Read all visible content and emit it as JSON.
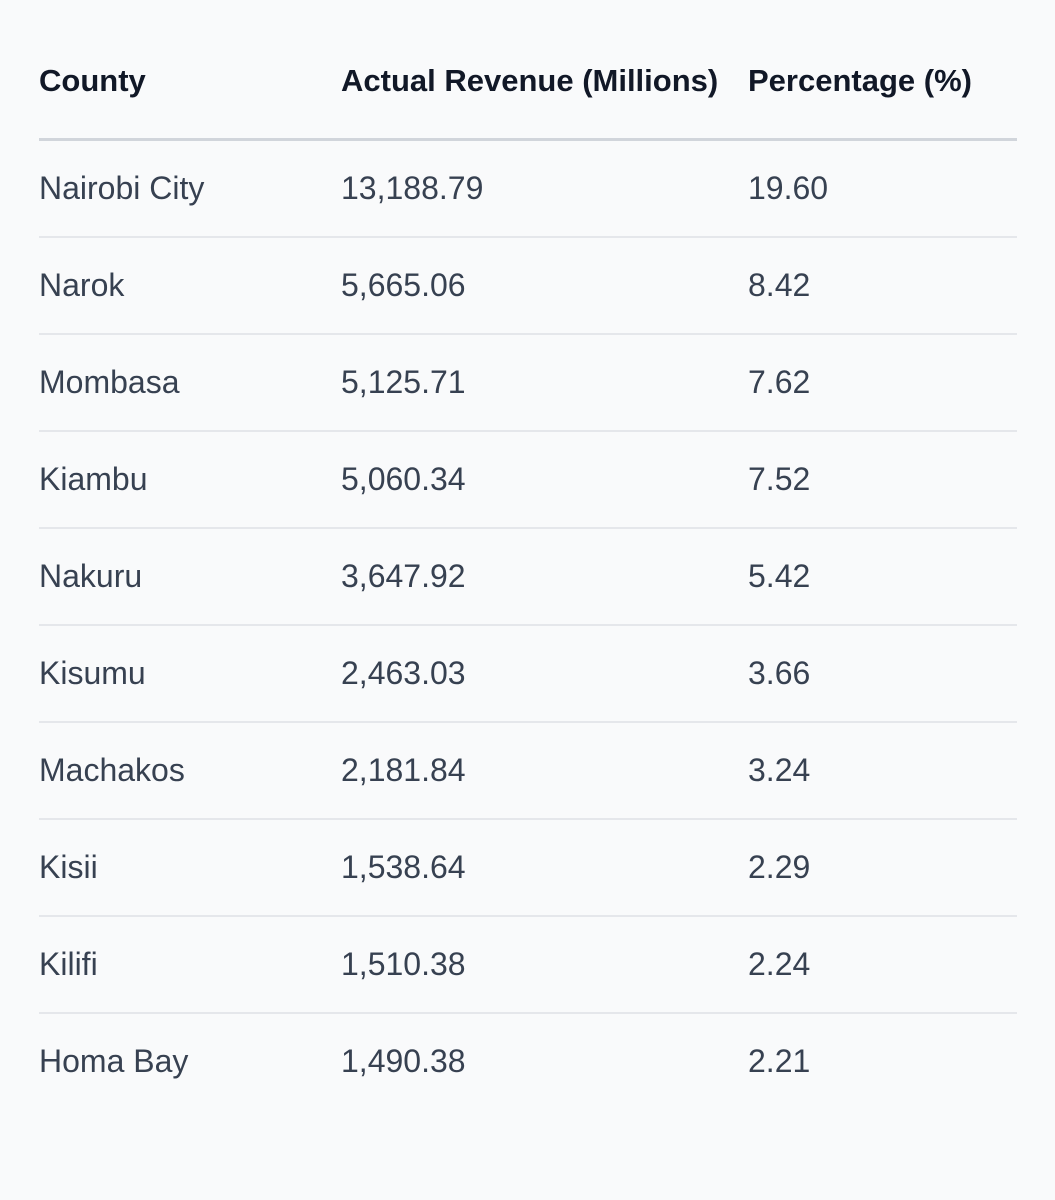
{
  "table": {
    "headers": [
      "County",
      "Actual Revenue (Millions)",
      "Percentage (%)"
    ],
    "rows": [
      {
        "county": "Nairobi City",
        "revenue": "13,188.79",
        "percentage": "19.60"
      },
      {
        "county": "Narok",
        "revenue": "5,665.06",
        "percentage": "8.42"
      },
      {
        "county": "Mombasa",
        "revenue": "5,125.71",
        "percentage": "7.62"
      },
      {
        "county": "Kiambu",
        "revenue": "5,060.34",
        "percentage": "7.52"
      },
      {
        "county": "Nakuru",
        "revenue": "3,647.92",
        "percentage": "5.42"
      },
      {
        "county": "Kisumu",
        "revenue": "2,463.03",
        "percentage": "3.66"
      },
      {
        "county": "Machakos",
        "revenue": "2,181.84",
        "percentage": "3.24"
      },
      {
        "county": "Kisii",
        "revenue": "1,538.64",
        "percentage": "2.29"
      },
      {
        "county": "Kilifi",
        "revenue": "1,510.38",
        "percentage": "2.24"
      },
      {
        "county": "Homa Bay",
        "revenue": "1,490.38",
        "percentage": "2.21"
      }
    ]
  },
  "colors": {
    "background": "#f9fafb",
    "header_text": "#111827",
    "body_text": "#374151",
    "header_rule": "#d1d5db",
    "row_rule": "#e5e7eb"
  }
}
